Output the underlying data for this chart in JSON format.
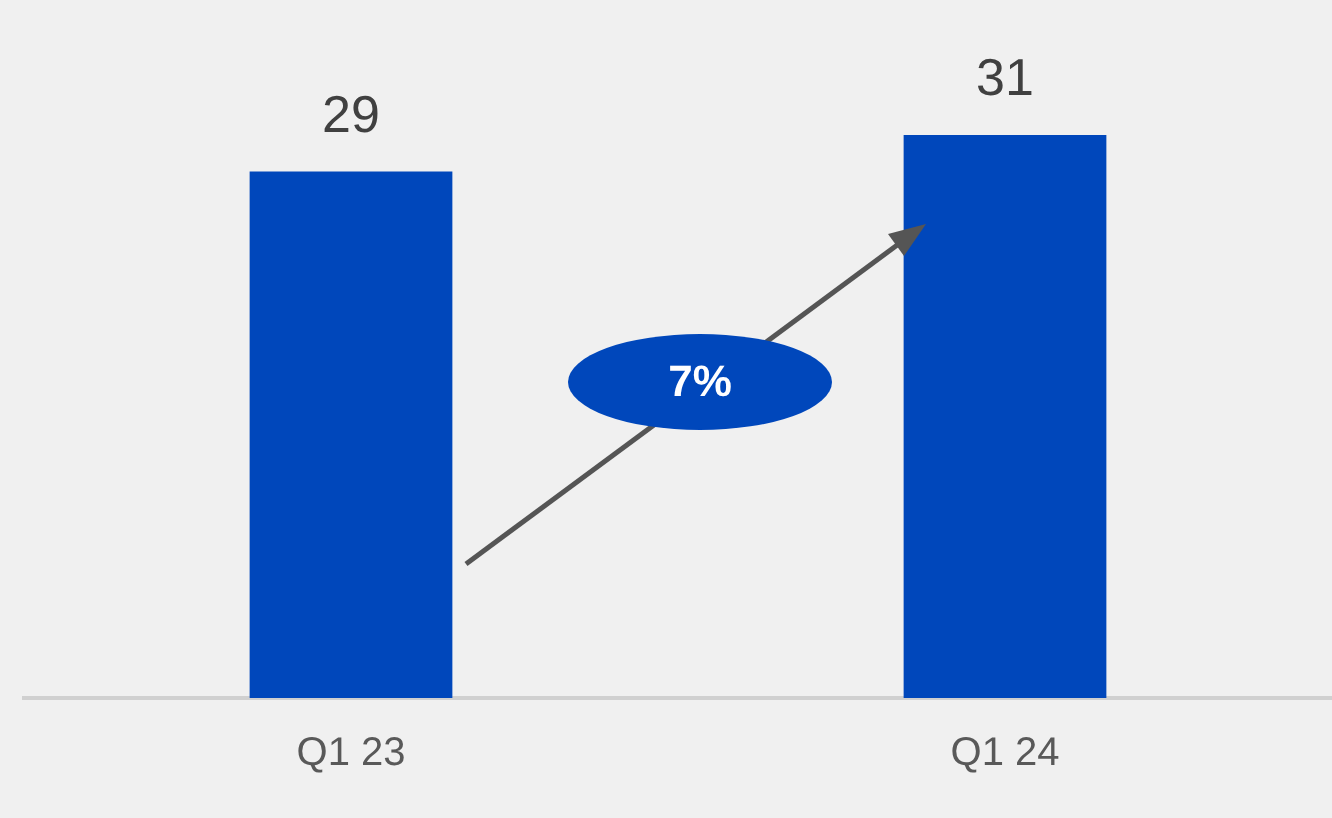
{
  "chart_data": {
    "type": "bar",
    "categories": [
      "Q1 23",
      "Q1 24"
    ],
    "values": [
      29,
      31
    ],
    "color": "#0047bb",
    "data_labels": true,
    "annotations": [
      "7%"
    ],
    "grid": false
  }
}
